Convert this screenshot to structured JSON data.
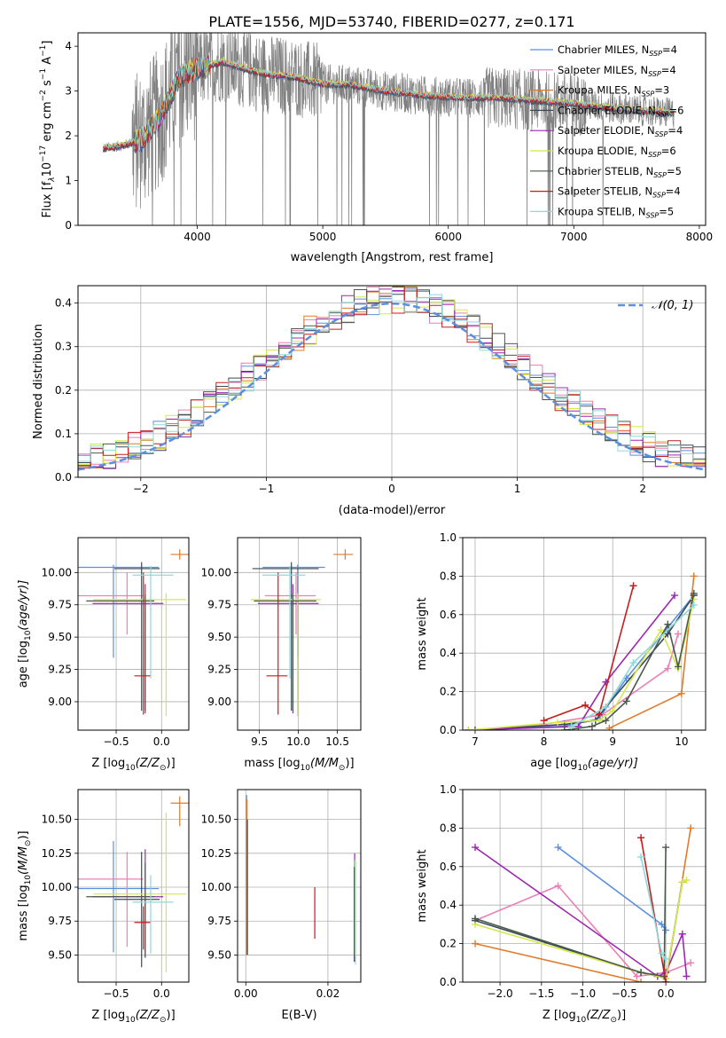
{
  "figure_title": "PLATE=1556, MJD=53740, FIBERID=0277, z=0.171",
  "series_styles": [
    {
      "name": "Chabrier MILES",
      "legend_nssp": "N",
      "nssp_sub": "SSP",
      "nssp_value": "=4",
      "color": "#5b8fe0"
    },
    {
      "name": "Salpeter MILES",
      "legend_nssp": "N",
      "nssp_sub": "SSP",
      "nssp_value": "=4",
      "color": "#ec7fb6"
    },
    {
      "name": "Kroupa MILES",
      "legend_nssp": "N",
      "nssp_sub": "SSP",
      "nssp_value": "=3",
      "color": "#e07b2a"
    },
    {
      "name": "Chabrier ELODIE",
      "legend_nssp": "N",
      "nssp_sub": "SSP",
      "nssp_value": "=6",
      "color": "#3a4a5a"
    },
    {
      "name": "Salpeter ELODIE",
      "legend_nssp": "N",
      "nssp_sub": "SSP",
      "nssp_value": "=4",
      "color": "#9c27b0"
    },
    {
      "name": "Kroupa ELODIE",
      "legend_nssp": "N",
      "nssp_sub": "SSP",
      "nssp_value": "=6",
      "color": "#d4e84a"
    },
    {
      "name": "Chabrier STELIB",
      "legend_nssp": "N",
      "nssp_sub": "SSP",
      "nssp_value": "=5",
      "color": "#4a5a4a"
    },
    {
      "name": "Salpeter STELIB",
      "legend_nssp": "N",
      "nssp_sub": "SSP",
      "nssp_value": "=4",
      "color": "#c41e1e"
    },
    {
      "name": "Kroupa STELIB",
      "legend_nssp": "N",
      "nssp_sub": "SSP",
      "nssp_value": "=5",
      "color": "#8fd8d8"
    }
  ],
  "chart_data": [
    {
      "id": "spectrum",
      "type": "line",
      "xlabel": "wavelength [Angstrom, rest frame]",
      "ylabel_parts": [
        "Flux [f",
        "λ",
        "10",
        "−17",
        " erg cm",
        "−2",
        " s",
        "−1",
        " A",
        "−1",
        "]"
      ],
      "xlim": [
        3050,
        8050
      ],
      "ylim": [
        0,
        4.3
      ],
      "xticks": [
        4000,
        5000,
        6000,
        7000,
        8000
      ],
      "yticks": [
        0,
        1,
        2,
        3,
        4
      ],
      "data_color": "#808080",
      "model_knots": {
        "x": [
          3250,
          3400,
          3550,
          3700,
          3850,
          4000,
          4200,
          4500,
          4800,
          5000,
          5200,
          5500,
          5800,
          6100,
          6400,
          6700,
          7000,
          7300,
          7600,
          7800
        ],
        "y": [
          1.72,
          1.78,
          1.9,
          2.4,
          3.3,
          3.5,
          3.65,
          3.4,
          3.3,
          3.15,
          3.15,
          3.0,
          2.9,
          2.85,
          2.85,
          2.78,
          2.72,
          2.62,
          2.55,
          2.5
        ]
      }
    },
    {
      "id": "residuals",
      "type": "step",
      "xlabel": "(data-model)/error",
      "ylabel": "Normed distribution",
      "xlim": [
        -2.5,
        2.5
      ],
      "ylim": [
        0,
        0.44
      ],
      "xticks": [
        -2,
        -1,
        0,
        1,
        2
      ],
      "yticks": [
        0.0,
        0.1,
        0.2,
        0.3,
        0.4
      ],
      "bin_edges_start": -2.5,
      "bin_width": 0.1,
      "normal_label": "𝒩(0, 1)",
      "normal_color": "#5b8fe0"
    },
    {
      "id": "age_vs_Z",
      "type": "errorbar",
      "xlabel_parts": [
        "Z [log",
        "10",
        "(Z/Z",
        "⊙",
        ")]"
      ],
      "ylabel_parts": [
        "age  [log",
        "10",
        "(age/yr)]"
      ],
      "xlim": [
        -0.92,
        0.3
      ],
      "ylim": [
        8.78,
        10.27
      ],
      "xticks": [
        -0.5,
        0.0
      ],
      "yticks": [
        9.0,
        9.25,
        9.5,
        9.75,
        10.0
      ],
      "points": [
        {
          "x": -0.53,
          "xerr": [
            0.6,
            0.5
          ],
          "y": 10.04,
          "yerr": [
            0.7,
            0.02
          ]
        },
        {
          "x": -0.38,
          "xerr": [
            0.57,
            0.18
          ],
          "y": 9.82,
          "yerr": [
            0.3,
            0.18
          ]
        },
        {
          "x": 0.2,
          "xerr": [
            0.1,
            0.1
          ],
          "y": 10.14,
          "yerr": [
            0.04,
            0.04
          ]
        },
        {
          "x": -0.22,
          "xerr": [
            0.3,
            0.2
          ],
          "y": 10.03,
          "yerr": [
            1.1,
            0.05
          ]
        },
        {
          "x": -0.18,
          "xerr": [
            0.58,
            0.2
          ],
          "y": 9.76,
          "yerr": [
            0.85,
            0.15
          ]
        },
        {
          "x": 0.05,
          "xerr": [
            0.8,
            0.22
          ],
          "y": 9.79,
          "yerr": [
            0.9,
            0.05
          ]
        },
        {
          "x": -0.18,
          "xerr": [
            0.65,
            0.1
          ],
          "y": 9.78,
          "yerr": [
            0.85,
            0.05
          ]
        },
        {
          "x": -0.2,
          "xerr": [
            0.1,
            0.08
          ],
          "y": 9.2,
          "yerr": [
            0.3,
            0.8
          ]
        },
        {
          "x": -0.12,
          "xerr": [
            0.2,
            0.25
          ],
          "y": 9.98,
          "yerr": [
            0.8,
            0.07
          ]
        }
      ]
    },
    {
      "id": "age_vs_mass",
      "type": "errorbar",
      "xlabel_parts": [
        "mass [log",
        "10",
        "(M/M",
        "⊙",
        ")]"
      ],
      "xlim": [
        9.22,
        10.8
      ],
      "ylim": [
        8.78,
        10.27
      ],
      "xticks": [
        9.5,
        10.0,
        10.5
      ],
      "yticks": [
        9.0,
        9.25,
        9.5,
        9.75,
        10.0
      ],
      "points": [
        {
          "x": 9.99,
          "xerr": [
            0.45,
            0.35
          ],
          "y": 10.04,
          "yerr": [
            0.7,
            0.02
          ]
        },
        {
          "x": 9.97,
          "xerr": [
            0.4,
            0.25
          ],
          "y": 9.82,
          "yerr": [
            0.3,
            0.18
          ]
        },
        {
          "x": 10.6,
          "xerr": [
            0.15,
            0.1
          ],
          "y": 10.14,
          "yerr": [
            0.04,
            0.04
          ]
        },
        {
          "x": 9.91,
          "xerr": [
            0.5,
            0.35
          ],
          "y": 10.03,
          "yerr": [
            1.1,
            0.05
          ]
        },
        {
          "x": 9.93,
          "xerr": [
            0.45,
            0.33
          ],
          "y": 9.76,
          "yerr": [
            0.85,
            0.15
          ]
        },
        {
          "x": 9.99,
          "xerr": [
            0.6,
            0.3
          ],
          "y": 9.79,
          "yerr": [
            0.9,
            0.05
          ]
        },
        {
          "x": 9.93,
          "xerr": [
            0.5,
            0.3
          ],
          "y": 9.78,
          "yerr": [
            0.85,
            0.05
          ]
        },
        {
          "x": 9.74,
          "xerr": [
            0.15,
            0.12
          ],
          "y": 9.2,
          "yerr": [
            0.3,
            0.8
          ]
        },
        {
          "x": 9.89,
          "xerr": [
            0.35,
            0.2
          ],
          "y": 9.98,
          "yerr": [
            0.8,
            0.07
          ]
        }
      ]
    },
    {
      "id": "massweight_vs_age",
      "type": "line",
      "xlabel_parts": [
        "age  [log",
        "10",
        "(age/yr)]"
      ],
      "ylabel": "mass weight",
      "xlim": [
        6.82,
        10.35
      ],
      "ylim": [
        0,
        1
      ],
      "xticks": [
        7,
        8,
        9,
        10
      ],
      "yticks": [
        0.0,
        0.2,
        0.4,
        0.6,
        0.8,
        1.0
      ],
      "series": [
        {
          "x": [
            6.9,
            8.3,
            8.8,
            9.2,
            10.18
          ],
          "y": [
            0.0,
            0.02,
            0.06,
            0.27,
            0.7
          ]
        },
        {
          "x": [
            6.9,
            8.0,
            8.85,
            9.8,
            9.95
          ],
          "y": [
            0.0,
            0.03,
            0.08,
            0.32,
            0.5
          ]
        },
        {
          "x": [
            8.95,
            10.0,
            10.18
          ],
          "y": [
            0.01,
            0.19,
            0.8
          ]
        },
        {
          "x": [
            7.0,
            8.3,
            8.75,
            8.9,
            9.8,
            10.18
          ],
          "y": [
            0.0,
            0.03,
            0.05,
            0.12,
            0.5,
            0.7
          ]
        },
        {
          "x": [
            6.9,
            8.5,
            8.9,
            9.9
          ],
          "y": [
            0.0,
            0.02,
            0.25,
            0.7
          ]
        },
        {
          "x": [
            6.9,
            8.2,
            8.8,
            9.0,
            9.7,
            9.95,
            10.18
          ],
          "y": [
            0.0,
            0.04,
            0.05,
            0.1,
            0.52,
            0.32,
            0.68
          ]
        },
        {
          "x": [
            8.3,
            8.7,
            8.9,
            9.2,
            9.8,
            9.95,
            10.18
          ],
          "y": [
            0.0,
            0.02,
            0.05,
            0.15,
            0.55,
            0.33,
            0.71
          ]
        },
        {
          "x": [
            8.0,
            8.6,
            8.8,
            9.3
          ],
          "y": [
            0.05,
            0.13,
            0.08,
            0.75
          ]
        },
        {
          "x": [
            8.4,
            8.9,
            9.3,
            10.18
          ],
          "y": [
            0.02,
            0.12,
            0.35,
            0.65
          ]
        }
      ]
    },
    {
      "id": "mass_vs_Z",
      "type": "errorbar",
      "xlabel_parts": [
        "Z [log",
        "10",
        "(Z/Z",
        "⊙",
        ")]"
      ],
      "ylabel_parts": [
        "mass [log",
        "10",
        "(M/M",
        "⊙",
        ")]"
      ],
      "xlim": [
        -0.92,
        0.3
      ],
      "ylim": [
        9.3,
        10.72
      ],
      "xticks": [
        -0.5,
        0.0
      ],
      "yticks": [
        9.5,
        9.75,
        10.0,
        10.25,
        10.5
      ],
      "points": [
        {
          "x": -0.53,
          "xerr": [
            0.6,
            0.5
          ],
          "y": 9.99,
          "yerr": [
            0.47,
            0.35
          ]
        },
        {
          "x": -0.38,
          "xerr": [
            0.57,
            0.18
          ],
          "y": 10.06,
          "yerr": [
            0.5,
            0.2
          ]
        },
        {
          "x": 0.2,
          "xerr": [
            0.1,
            0.1
          ],
          "y": 10.62,
          "yerr": [
            0.17,
            0.05
          ]
        },
        {
          "x": -0.22,
          "xerr": [
            0.3,
            0.2
          ],
          "y": 9.91,
          "yerr": [
            0.5,
            0.35
          ]
        },
        {
          "x": -0.18,
          "xerr": [
            0.58,
            0.2
          ],
          "y": 9.93,
          "yerr": [
            0.45,
            0.35
          ]
        },
        {
          "x": 0.05,
          "xerr": [
            0.8,
            0.22
          ],
          "y": 9.95,
          "yerr": [
            0.58,
            0.6
          ]
        },
        {
          "x": -0.18,
          "xerr": [
            0.65,
            0.1
          ],
          "y": 9.93,
          "yerr": [
            0.45,
            0.25
          ]
        },
        {
          "x": -0.2,
          "xerr": [
            0.1,
            0.08
          ],
          "y": 9.74,
          "yerr": [
            0.2,
            0.12
          ]
        },
        {
          "x": -0.12,
          "xerr": [
            0.2,
            0.25
          ],
          "y": 9.89,
          "yerr": [
            0.38,
            0.2
          ]
        }
      ]
    },
    {
      "id": "mass_vs_EBV",
      "type": "errorbar",
      "xlabel": "E(B-V)",
      "xlim": [
        -0.002,
        0.028
      ],
      "ylim": [
        9.3,
        10.72
      ],
      "xticks": [
        0.0,
        0.02
      ],
      "yticks": [
        9.5,
        9.75,
        10.0,
        10.25,
        10.5
      ],
      "points": [
        {
          "x": 0.0002,
          "y": 10.3,
          "yerr": [
            0.8,
            0.38
          ]
        },
        {
          "x": 0.0001,
          "y": 10.0,
          "yerr": [
            0.5,
            0.5
          ]
        },
        {
          "x": 0.0003,
          "y": 10.1,
          "yerr": [
            0.6,
            0.55
          ]
        },
        {
          "x": 0.0004,
          "y": 10.0,
          "yerr": [
            0.5,
            0.5
          ]
        },
        {
          "x": 0.0265,
          "y": 9.8,
          "yerr": [
            0.35,
            0.45
          ]
        },
        {
          "x": 0.0266,
          "y": 9.7,
          "yerr": [
            0.2,
            0.5
          ]
        },
        {
          "x": 0.0264,
          "y": 9.9,
          "yerr": [
            0.45,
            0.25
          ]
        },
        {
          "x": 0.0168,
          "y": 9.8,
          "yerr": [
            0.18,
            0.2
          ]
        },
        {
          "x": 0.0267,
          "y": 9.85,
          "yerr": [
            0.42,
            0.35
          ]
        }
      ]
    },
    {
      "id": "massweight_vs_Z",
      "type": "line",
      "xlabel_parts": [
        "Z [log",
        "10",
        "(Z/Z",
        "⊙",
        ")]"
      ],
      "ylabel": "mass weight",
      "xlim": [
        -2.45,
        0.48
      ],
      "ylim": [
        0,
        1
      ],
      "xticks": [
        -2.0,
        -1.5,
        -1.0,
        -0.5,
        0.0
      ],
      "yticks": [
        0.0,
        0.2,
        0.4,
        0.6,
        0.8,
        1.0
      ],
      "series": [
        {
          "x": [
            -1.3,
            -0.05,
            0.0
          ],
          "y": [
            0.7,
            0.3,
            0.27
          ]
        },
        {
          "x": [
            -2.3,
            -1.3,
            -0.35,
            0.0,
            0.3
          ],
          "y": [
            0.32,
            0.5,
            0.03,
            0.05,
            0.1
          ]
        },
        {
          "x": [
            -2.3,
            -0.3,
            0.0,
            0.3
          ],
          "y": [
            0.2,
            0.0,
            0.0,
            0.8
          ]
        },
        {
          "x": [
            -2.3,
            -0.3,
            0.0,
            0.2
          ],
          "y": [
            0.32,
            0.05,
            0.02,
            0.52
          ]
        },
        {
          "x": [
            -2.3,
            -0.1,
            0.0,
            0.2,
            0.25
          ],
          "y": [
            0.7,
            0.03,
            0.05,
            0.25,
            0.03
          ]
        },
        {
          "x": [
            -2.3,
            -0.3,
            0.0,
            0.2,
            0.25
          ],
          "y": [
            0.3,
            0.05,
            0.02,
            0.52,
            0.53
          ]
        },
        {
          "x": [
            -2.3,
            -0.3,
            -0.02,
            0.0
          ],
          "y": [
            0.33,
            0.05,
            0.03,
            0.7
          ]
        },
        {
          "x": [
            -0.3,
            0.0
          ],
          "y": [
            0.75,
            0.0
          ]
        },
        {
          "x": [
            -0.3,
            -0.05,
            0.0
          ],
          "y": [
            0.65,
            0.15,
            0.12
          ]
        }
      ]
    }
  ]
}
